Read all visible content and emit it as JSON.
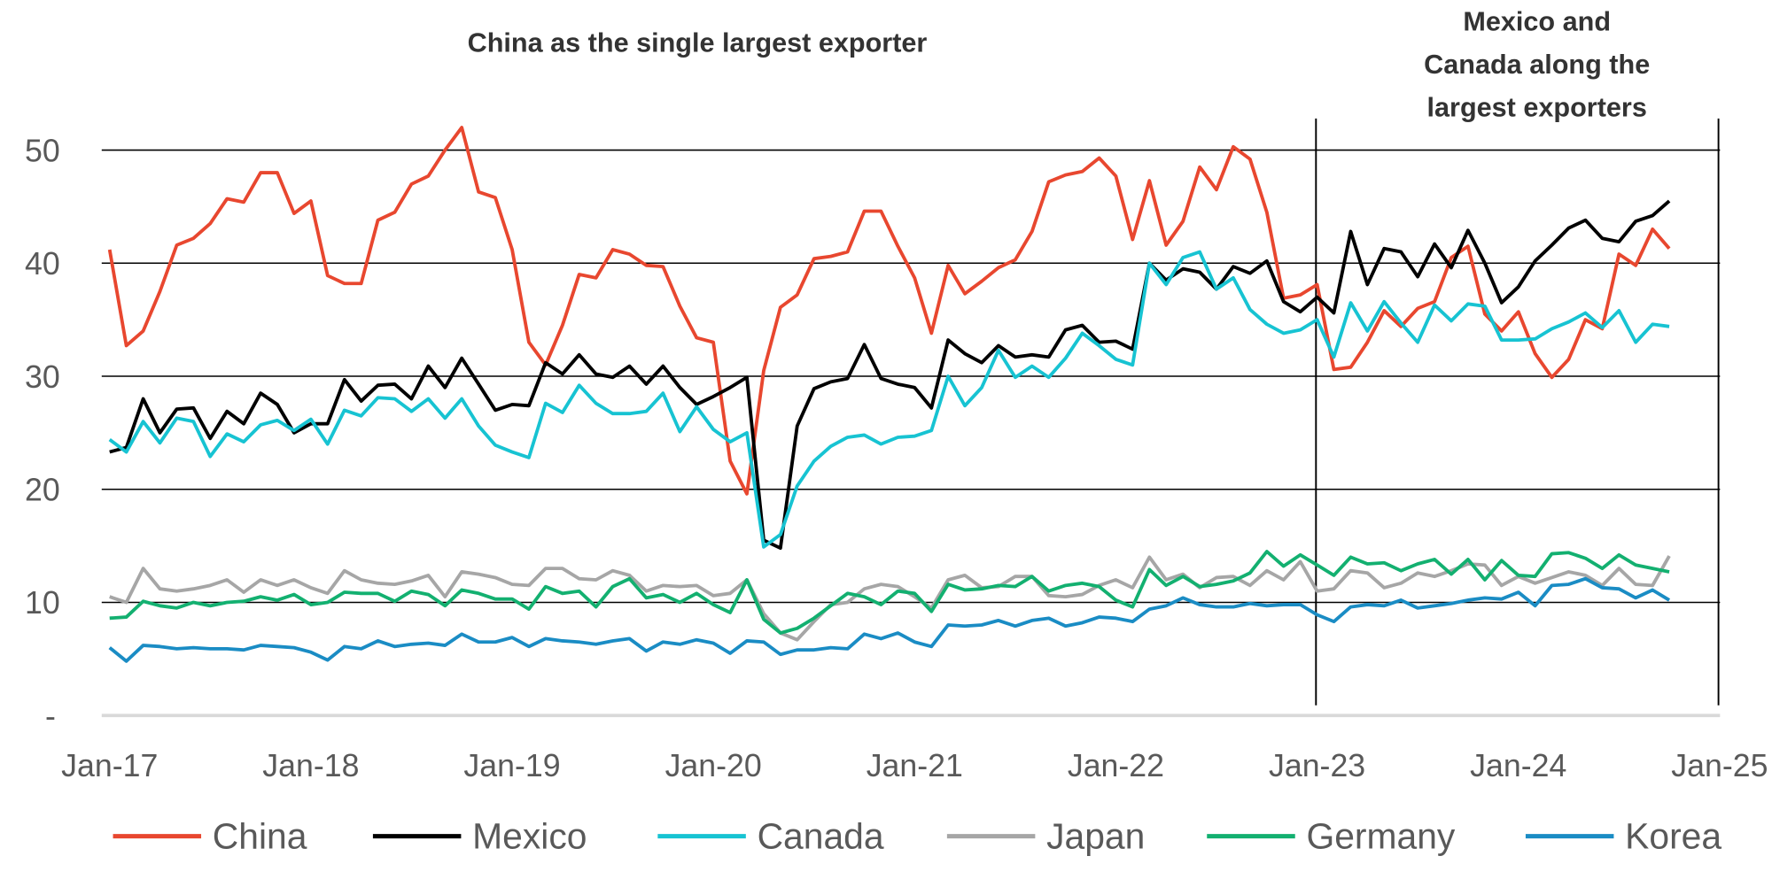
{
  "chart_data": {
    "type": "line",
    "title": "",
    "xlabel": "",
    "ylabel": "",
    "x_start": "Jan-17",
    "x_frequency": "monthly",
    "x_ticks": [
      "Jan-17",
      "Jan-18",
      "Jan-19",
      "Jan-20",
      "Jan-21",
      "Jan-22",
      "Jan-23",
      "Jan-24",
      "Jan-25"
    ],
    "y_ticks": [
      {
        "value": 0,
        "label": "-"
      },
      {
        "value": 10,
        "label": "10"
      },
      {
        "value": 20,
        "label": "20"
      },
      {
        "value": 30,
        "label": "30"
      },
      {
        "value": 40,
        "label": "40"
      },
      {
        "value": 50,
        "label": "50"
      }
    ],
    "ylim": [
      0,
      50
    ],
    "grid": "horizontal",
    "legend_position": "bottom",
    "vertical_markers": [
      "Jan-23",
      "Jan-25"
    ],
    "annotations": [
      {
        "lines": [
          "China as the single largest exporter"
        ]
      },
      {
        "lines": [
          "Mexico and",
          "Canada along the",
          "largest exporters"
        ]
      }
    ],
    "series": [
      {
        "name": "China",
        "color": "#E8472F",
        "values": [
          41.2,
          32.7,
          34,
          37.5,
          41.6,
          42.2,
          43.5,
          45.7,
          45.4,
          48,
          48,
          44.4,
          45.5,
          38.9,
          38.2,
          38.2,
          43.8,
          44.5,
          47,
          47.7,
          50,
          52,
          46.3,
          45.8,
          41.2,
          33,
          31,
          34.5,
          39,
          38.7,
          41.2,
          40.8,
          39.8,
          39.7,
          36.2,
          33.4,
          33,
          22.5,
          19.6,
          30.5,
          36.1,
          37.2,
          40.4,
          40.6,
          41,
          44.6,
          44.6,
          41.5,
          38.7,
          33.8,
          39.8,
          37.3,
          38.4,
          39.6,
          40.3,
          42.8,
          47.2,
          47.8,
          48.1,
          49.3,
          47.7,
          42.1,
          47.3,
          41.6,
          43.7,
          48.5,
          46.5,
          50.3,
          49.2,
          44.5,
          36.9,
          37.2,
          38.1,
          30.6,
          30.8,
          33,
          35.8,
          34.4,
          36,
          36.6,
          40.5,
          41.5,
          35.5,
          34,
          35.7,
          32,
          29.9,
          31.5,
          35,
          34.2,
          40.8,
          39.8,
          43,
          41.3
        ]
      },
      {
        "name": "Mexico",
        "color": "#000000",
        "values": [
          23.3,
          23.7,
          28,
          25,
          27.1,
          27.2,
          24.5,
          26.9,
          25.8,
          28.5,
          27.5,
          25,
          25.8,
          25.8,
          29.7,
          27.8,
          29.2,
          29.3,
          28,
          30.9,
          29,
          31.6,
          29.3,
          27,
          27.5,
          27.4,
          31.2,
          30.2,
          31.9,
          30.2,
          29.9,
          30.9,
          29.3,
          30.9,
          29,
          27.5,
          28.2,
          29,
          29.9,
          15.5,
          14.8,
          25.6,
          28.9,
          29.5,
          29.8,
          32.8,
          29.8,
          29.3,
          29,
          27.2,
          33.2,
          32,
          31.2,
          32.7,
          31.7,
          31.9,
          31.7,
          34.1,
          34.5,
          33,
          33.1,
          32.4,
          40,
          38.5,
          39.5,
          39.2,
          37.7,
          39.7,
          39.1,
          40.2,
          36.6,
          35.7,
          37,
          35.6,
          42.8,
          38.1,
          41.3,
          41,
          38.8,
          41.7,
          39.6,
          42.9,
          40,
          36.5,
          37.9,
          40.2,
          41.6,
          43.1,
          43.8,
          42.2,
          41.9,
          43.7,
          44.2,
          45.5
        ]
      },
      {
        "name": "Canada",
        "color": "#17C3D2",
        "values": [
          24.4,
          23.3,
          26,
          24.1,
          26.3,
          26,
          22.9,
          24.9,
          24.2,
          25.7,
          26.1,
          25.2,
          26.2,
          24,
          27,
          26.5,
          28.1,
          28,
          26.9,
          28,
          26.3,
          28,
          25.6,
          23.9,
          23.3,
          22.8,
          27.6,
          26.8,
          29.2,
          27.6,
          26.7,
          26.7,
          26.9,
          28.5,
          25.1,
          27.3,
          25.3,
          24.2,
          25,
          14.9,
          16,
          20.3,
          22.5,
          23.8,
          24.6,
          24.8,
          24,
          24.6,
          24.7,
          25.2,
          30,
          27.4,
          29,
          32.3,
          29.9,
          30.9,
          29.9,
          31.6,
          33.8,
          32.7,
          31.5,
          31,
          40,
          38.1,
          40.5,
          41,
          37.7,
          38.7,
          35.9,
          34.6,
          33.8,
          34.1,
          35,
          31.7,
          36.5,
          34,
          36.6,
          34.7,
          33,
          36.3,
          34.9,
          36.4,
          36.2,
          33.2,
          33.2,
          33.3,
          34.2,
          34.8,
          35.6,
          34.3,
          35.8,
          33,
          34.6,
          34.4
        ]
      },
      {
        "name": "Japan",
        "color": "#A6A6A6",
        "values": [
          10.5,
          10,
          13,
          11.2,
          11,
          11.2,
          11.5,
          12,
          10.9,
          12,
          11.5,
          12,
          11.3,
          10.8,
          12.8,
          12,
          11.7,
          11.6,
          11.9,
          12.4,
          10.5,
          12.7,
          12.5,
          12.2,
          11.6,
          11.5,
          13,
          13,
          12.1,
          12,
          12.8,
          12.4,
          11,
          11.5,
          11.4,
          11.5,
          10.6,
          10.8,
          12,
          9,
          7.3,
          6.7,
          8.3,
          9.8,
          10,
          11.2,
          11.6,
          11.4,
          10.5,
          9.5,
          12,
          12.4,
          11.3,
          11.4,
          12.3,
          12.3,
          10.6,
          10.5,
          10.7,
          11.5,
          12,
          11.3,
          14,
          12,
          12.5,
          11.3,
          12.2,
          12.3,
          11.5,
          12.8,
          12,
          13.6,
          11,
          11.2,
          12.8,
          12.6,
          11.3,
          11.7,
          12.6,
          12.3,
          12.8,
          13.4,
          13.3,
          11.5,
          12.3,
          11.7,
          12.2,
          12.7,
          12.4,
          11.5,
          13,
          11.6,
          11.5,
          14.1
        ]
      },
      {
        "name": "Germany",
        "color": "#13B070",
        "values": [
          8.6,
          8.7,
          10.1,
          9.7,
          9.5,
          10,
          9.7,
          10,
          10.1,
          10.5,
          10.2,
          10.7,
          9.8,
          10,
          10.9,
          10.8,
          10.8,
          10.1,
          11,
          10.7,
          9.7,
          11.1,
          10.8,
          10.3,
          10.3,
          9.4,
          11.4,
          10.8,
          11,
          9.6,
          11.4,
          12.1,
          10.4,
          10.7,
          10,
          10.8,
          9.8,
          9.1,
          12,
          8.5,
          7.3,
          7.7,
          8.6,
          9.7,
          10.8,
          10.5,
          9.8,
          11,
          10.8,
          9.2,
          11.6,
          11.1,
          11.2,
          11.5,
          11.4,
          12.3,
          11,
          11.5,
          11.7,
          11.4,
          10.2,
          9.6,
          12.9,
          11.5,
          12.3,
          11.4,
          11.6,
          11.9,
          12.6,
          14.5,
          13.2,
          14.2,
          13.3,
          12.4,
          14,
          13.4,
          13.5,
          12.8,
          13.4,
          13.8,
          12.5,
          13.8,
          12,
          13.7,
          12.4,
          12.3,
          14.3,
          14.4,
          13.9,
          13,
          14.2,
          13.3,
          13,
          12.7
        ]
      },
      {
        "name": "Korea",
        "color": "#1A8CC4",
        "values": [
          6,
          4.8,
          6.2,
          6.1,
          5.9,
          6,
          5.9,
          5.9,
          5.8,
          6.2,
          6.1,
          6,
          5.6,
          4.9,
          6.1,
          5.9,
          6.6,
          6.1,
          6.3,
          6.4,
          6.2,
          7.2,
          6.5,
          6.5,
          6.9,
          6.1,
          6.8,
          6.6,
          6.5,
          6.3,
          6.6,
          6.8,
          5.7,
          6.5,
          6.3,
          6.7,
          6.4,
          5.5,
          6.6,
          6.5,
          5.4,
          5.8,
          5.8,
          6,
          5.9,
          7.2,
          6.8,
          7.3,
          6.5,
          6.1,
          8,
          7.9,
          8,
          8.4,
          7.9,
          8.4,
          8.6,
          7.9,
          8.2,
          8.7,
          8.6,
          8.3,
          9.4,
          9.7,
          10.4,
          9.8,
          9.6,
          9.6,
          9.9,
          9.7,
          9.8,
          9.8,
          8.9,
          8.3,
          9.6,
          9.8,
          9.7,
          10.2,
          9.5,
          9.7,
          9.9,
          10.2,
          10.4,
          10.3,
          10.9,
          9.7,
          11.5,
          11.6,
          12.1,
          11.3,
          11.2,
          10.4,
          11.1,
          10.2
        ]
      }
    ]
  }
}
